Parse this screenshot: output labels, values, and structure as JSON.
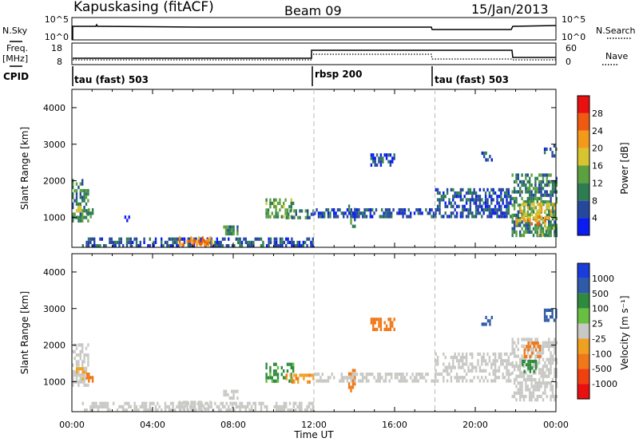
{
  "header": {
    "station": "Kapuskasing (fitACF)",
    "beam": "Beam 09",
    "date": "15/Jan/2013"
  },
  "top_panels": {
    "nsky_label": "N.Sky",
    "nsky_ticks": [
      "10^5",
      "10^0"
    ],
    "nsearch_label": "N.Search",
    "nsearch_ticks": [
      "10^5",
      "10^0"
    ],
    "freq_label": "Freq.",
    "freq_unit": "[MHz]",
    "freq_ticks": [
      "18",
      "8"
    ],
    "nave_label": "Nave",
    "nave_ticks": [
      "60",
      "0"
    ],
    "cpid_label": "CPID",
    "cpid_segments": [
      {
        "label": "tau (fast) 503",
        "start_hour": 0
      },
      {
        "label": "rbsp 200",
        "start_hour": 12
      },
      {
        "label": "tau (fast) 503",
        "start_hour": 18
      }
    ]
  },
  "colors": {
    "power": [
      "#0a1cf0",
      "#26489c",
      "#2e7d52",
      "#5da040",
      "#d8c430",
      "#f39a18",
      "#f05a10",
      "#e81010"
    ],
    "velocity_up": [
      "#1a3cd8",
      "#2e5aa8",
      "#2e8a3c",
      "#68c040"
    ],
    "velocity_ground": "#c8c8c4",
    "velocity_down": [
      "#f0a020",
      "#f07818",
      "#f04010",
      "#e81010"
    ],
    "divider": "#bbbbbb"
  },
  "chart_data": [
    {
      "type": "heatmap",
      "title": "Power",
      "ylabel": "Slant Range [km]",
      "yticks": [
        "1000",
        "2000",
        "3000",
        "4000"
      ],
      "ylim": [
        180,
        4500
      ],
      "xlim": [
        0,
        24
      ],
      "colorbar_label": "Power [dB]",
      "colorbar_ticks": [
        "4",
        "8",
        "12",
        "16",
        "20",
        "24",
        "28"
      ],
      "color_levels": [
        0,
        4,
        8,
        12,
        16,
        20,
        24,
        28,
        32
      ],
      "regions": [
        {
          "t": [
            0.0,
            0.8
          ],
          "r": [
            950,
            2050
          ],
          "v": 10
        },
        {
          "t": [
            0.2,
            0.5
          ],
          "r": [
            1180,
            1320
          ],
          "v": 18
        },
        {
          "t": [
            0.7,
            1.0
          ],
          "r": [
            1000,
            1250
          ],
          "v": 12
        },
        {
          "t": [
            0.5,
            12.0
          ],
          "r": [
            200,
            450
          ],
          "v": 6
        },
        {
          "t": [
            2.6,
            2.9
          ],
          "r": [
            950,
            1050
          ],
          "v": 6
        },
        {
          "t": [
            5.3,
            7.0
          ],
          "r": [
            260,
            480
          ],
          "v": 22
        },
        {
          "t": [
            6.0,
            6.8
          ],
          "r": [
            300,
            420
          ],
          "v": 27
        },
        {
          "t": [
            7.5,
            8.2
          ],
          "r": [
            550,
            780
          ],
          "v": 11
        },
        {
          "t": [
            9.6,
            11.0
          ],
          "r": [
            1050,
            1520
          ],
          "v": 13
        },
        {
          "t": [
            10.6,
            12.0
          ],
          "r": [
            1000,
            1220
          ],
          "v": 9
        },
        {
          "t": [
            13.7,
            14.0
          ],
          "r": [
            800,
            1350
          ],
          "v": 11
        },
        {
          "t": [
            14.8,
            16.0
          ],
          "r": [
            2400,
            2750
          ],
          "v": 6
        },
        {
          "t": [
            12.0,
            18.0
          ],
          "r": [
            1000,
            1250
          ],
          "v": 6
        },
        {
          "t": [
            18.0,
            21.8
          ],
          "r": [
            1050,
            1800
          ],
          "v": 6
        },
        {
          "t": [
            20.3,
            20.8
          ],
          "r": [
            2600,
            2800
          ],
          "v": 6
        },
        {
          "t": [
            21.8,
            24.0
          ],
          "r": [
            500,
            2200
          ],
          "v": 10
        },
        {
          "t": [
            22.2,
            24.0
          ],
          "r": [
            1000,
            1400
          ],
          "v": 18
        },
        {
          "t": [
            22.0,
            23.5
          ],
          "r": [
            850,
            1050
          ],
          "v": 22
        },
        {
          "t": [
            23.0,
            24.0
          ],
          "r": [
            550,
            750
          ],
          "v": 14
        },
        {
          "t": [
            23.4,
            24.0
          ],
          "r": [
            2700,
            3000
          ],
          "v": 6
        }
      ]
    },
    {
      "type": "heatmap",
      "title": "Velocity",
      "ylabel": "Slant Range [km]",
      "xlabel": "Time UT",
      "yticks": [
        "1000",
        "2000",
        "3000",
        "4000"
      ],
      "xticks": [
        "00:00",
        "04:00",
        "08:00",
        "12:00",
        "16:00",
        "20:00",
        "00:00"
      ],
      "ylim": [
        180,
        4500
      ],
      "xlim": [
        0,
        24
      ],
      "colorbar_label": "Velocity [m s⁻¹]",
      "colorbar_ticks": [
        "1000",
        "500",
        "100",
        "25",
        "-25",
        "-100",
        "-500",
        "-1000"
      ],
      "regions": [
        {
          "t": [
            0.0,
            0.8
          ],
          "r": [
            950,
            2050
          ],
          "v": 0
        },
        {
          "t": [
            0.2,
            0.6
          ],
          "r": [
            1100,
            1400
          ],
          "v": -80
        },
        {
          "t": [
            0.7,
            1.0
          ],
          "r": [
            1000,
            1250
          ],
          "v": -200
        },
        {
          "t": [
            0.5,
            12.0
          ],
          "r": [
            200,
            450
          ],
          "v": 0
        },
        {
          "t": [
            5.3,
            7.0
          ],
          "r": [
            260,
            480
          ],
          "v": 0
        },
        {
          "t": [
            7.5,
            8.2
          ],
          "r": [
            550,
            780
          ],
          "v": 0
        },
        {
          "t": [
            9.6,
            11.0
          ],
          "r": [
            1050,
            1520
          ],
          "v": 60
        },
        {
          "t": [
            10.6,
            12.0
          ],
          "r": [
            1000,
            1220
          ],
          "v": -90
        },
        {
          "t": [
            13.7,
            14.0
          ],
          "r": [
            800,
            1350
          ],
          "v": -150
        },
        {
          "t": [
            14.8,
            16.0
          ],
          "r": [
            2400,
            2750
          ],
          "v": -200
        },
        {
          "t": [
            12.0,
            18.0
          ],
          "r": [
            1000,
            1250
          ],
          "v": 0
        },
        {
          "t": [
            18.0,
            21.8
          ],
          "r": [
            1050,
            1800
          ],
          "v": 0
        },
        {
          "t": [
            20.3,
            20.8
          ],
          "r": [
            2600,
            2800
          ],
          "v": 200
        },
        {
          "t": [
            21.8,
            24.0
          ],
          "r": [
            500,
            2200
          ],
          "v": 0
        },
        {
          "t": [
            22.4,
            23.2
          ],
          "r": [
            1700,
            2100
          ],
          "v": -150
        },
        {
          "t": [
            22.3,
            23.0
          ],
          "r": [
            1300,
            1600
          ],
          "v": 80
        },
        {
          "t": [
            23.4,
            24.0
          ],
          "r": [
            2700,
            3000
          ],
          "v": 200
        }
      ]
    }
  ]
}
